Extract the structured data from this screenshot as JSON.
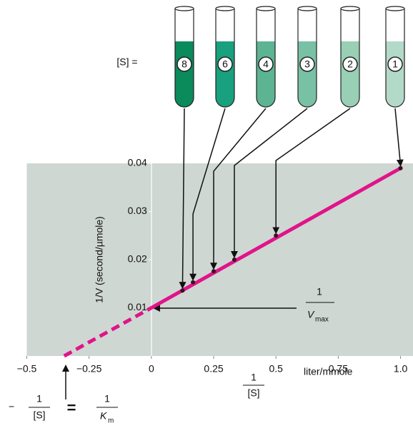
{
  "chart_data": {
    "type": "line",
    "concentration_label": "[S] =",
    "tubes": [
      {
        "label": "8",
        "color": "#0b8a5c"
      },
      {
        "label": "6",
        "color": "#19a07f"
      },
      {
        "label": "4",
        "color": "#5cb492"
      },
      {
        "label": "3",
        "color": "#79c1a4"
      },
      {
        "label": "2",
        "color": "#98cfb5"
      },
      {
        "label": "1",
        "color": "#b3dac8"
      }
    ],
    "x": [
      0.125,
      0.167,
      0.25,
      0.333,
      0.5,
      1.0
    ],
    "series": [
      {
        "color": "#e0148a",
        "values": [
          0.0136,
          0.0153,
          0.0176,
          0.02,
          0.025,
          0.039
        ]
      }
    ],
    "fit": {
      "x": [
        -0.35,
        0,
        1.0
      ],
      "values": [
        0,
        0.01,
        0.039
      ],
      "color": "#e0148a"
    },
    "xlim": [
      -0.5,
      1.05
    ],
    "ylim": [
      0,
      0.04
    ],
    "xticks": [
      {
        "value": -0.5,
        "label": "−0.5"
      },
      {
        "value": -0.25,
        "label": "−0.25"
      },
      0,
      0.25,
      0.5,
      0.75,
      {
        "value": 1.0,
        "label": "1.0"
      }
    ],
    "yticks": [
      0.01,
      0.02,
      0.03,
      0.04
    ],
    "y_label": "1/V (second/µmole)",
    "x_label": {
      "numerator": "1",
      "denominator": "[S]",
      "unit": "liter/mmole"
    },
    "vmax_annotation": {
      "numerator": "1",
      "symbol": "V",
      "subscript": "max"
    },
    "km_annotation": {
      "sign": "−",
      "left_numerator": "1",
      "left_denominator": "[S]",
      "equals": "=",
      "right_numerator": "1",
      "symbol": "K",
      "subscript": "m"
    }
  }
}
